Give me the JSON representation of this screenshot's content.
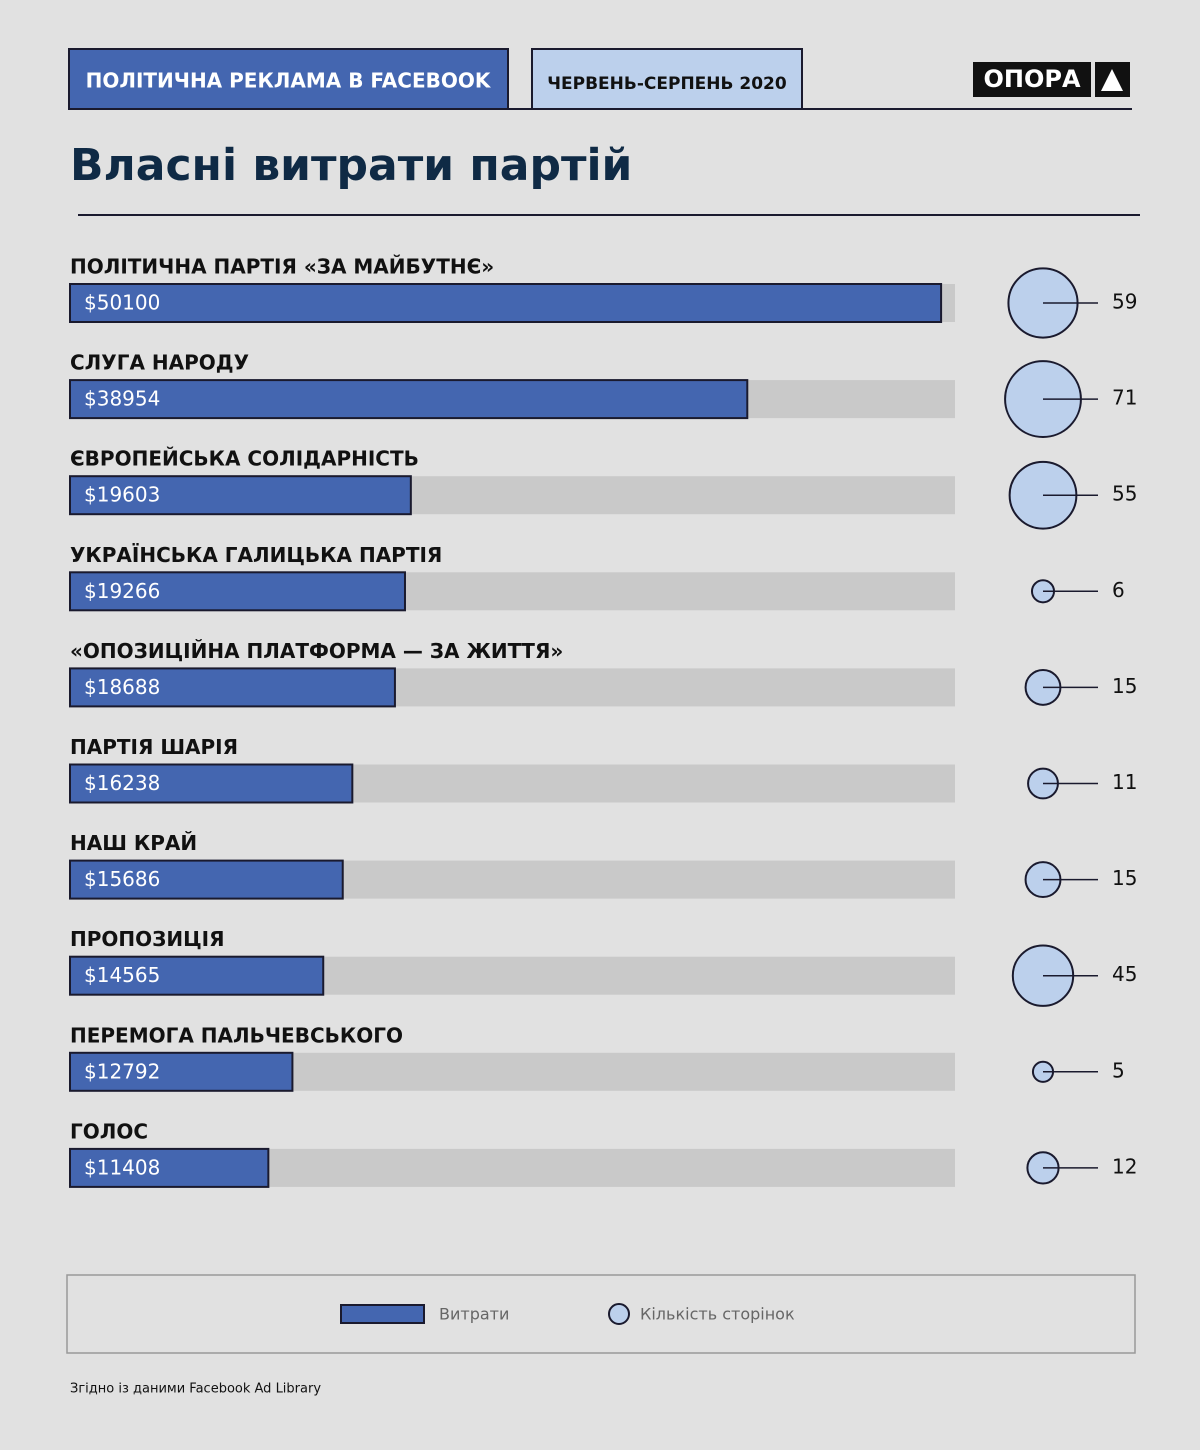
{
  "header": {
    "section": "ПОЛІТИЧНА РЕКЛАМА В FACEBOOK",
    "period": "ЧЕРВЕНЬ-СЕРПЕНЬ 2020",
    "logo": "ОПОРА"
  },
  "chart_data": {
    "type": "bar",
    "title": "Власні витрати партій",
    "categories": [
      "ПОЛІТИЧНА ПАРТІЯ «ЗА МАЙБУТНЄ»",
      "СЛУГА НАРОДУ",
      "ЄВРОПЕЙСЬКА СОЛІДАРНІСТЬ",
      "УКРАЇНСЬКА ГАЛИЦЬКА ПАРТІЯ",
      "«ОПОЗИЦІЙНА ПЛАТФОРМА — ЗА ЖИТТЯ»",
      "ПАРТІЯ ШАРІЯ",
      "НАШ КРАЙ",
      "ПРОПОЗИЦІЯ",
      "ПЕРЕМОГА ПАЛЬЧЕВСЬКОГО",
      "ГОЛОС"
    ],
    "series": [
      {
        "name": "Витрати",
        "color": "#4466b0",
        "values": [
          50100,
          38954,
          19603,
          19266,
          18688,
          16238,
          15686,
          14565,
          12792,
          11408
        ],
        "value_labels": [
          "$50100",
          "$38954",
          "$19603",
          "$19266",
          "$18688",
          "$16238",
          "$15686",
          "$14565",
          "$12792",
          "$11408"
        ]
      },
      {
        "name": "Кількість сторінок",
        "color": "#bcd0ec",
        "values": [
          59,
          71,
          55,
          6,
          15,
          11,
          15,
          45,
          5,
          12
        ]
      }
    ],
    "xlim": [
      0,
      50900
    ]
  },
  "source": "Згідно із даними Facebook Ad Library"
}
